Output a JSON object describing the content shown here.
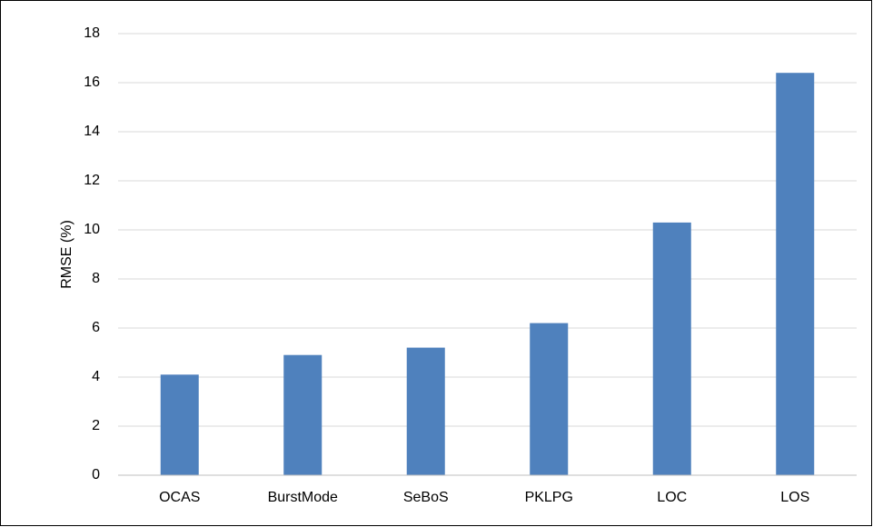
{
  "chart_data": {
    "type": "bar",
    "y_label": "RMSE (%)",
    "categories": [
      "OCAS",
      "BurstMode",
      "SeBoS",
      "PKLPG",
      "LOC",
      "LOS"
    ],
    "values": [
      4.1,
      4.9,
      5.2,
      6.2,
      10.3,
      16.4
    ],
    "color": "#4f81bd",
    "ylim": [
      0,
      18
    ],
    "yticks": [
      0,
      2,
      4,
      6,
      8,
      10,
      12,
      14,
      16,
      18
    ],
    "grid": true
  }
}
